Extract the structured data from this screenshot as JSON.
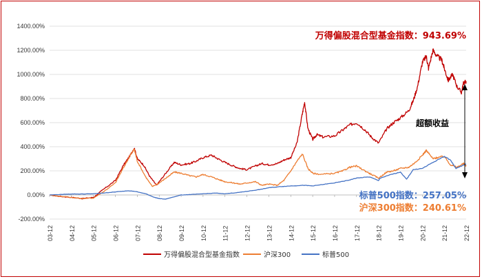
{
  "chart_data": {
    "type": "line",
    "title": "",
    "xlabel": "",
    "ylabel": "",
    "ylim": [
      -200,
      1400
    ],
    "yticks": [
      -200,
      0,
      200,
      400,
      600,
      800,
      1000,
      1200,
      1400
    ],
    "ytick_labels": [
      "-200.00%",
      "0.00%",
      "200.00%",
      "400.00%",
      "600.00%",
      "800.00%",
      "1000.00%",
      "1200.00%",
      "1400.00%"
    ],
    "x_range": [
      2003.917,
      2022.917
    ],
    "xticks": [
      2003.917,
      2004.917,
      2005.917,
      2006.917,
      2007.917,
      2008.917,
      2009.917,
      2010.917,
      2011.917,
      2012.917,
      2013.917,
      2014.917,
      2015.917,
      2016.917,
      2017.917,
      2018.917,
      2019.917,
      2020.917,
      2021.917,
      2022.917
    ],
    "xtick_labels": [
      "03-12",
      "04-12",
      "05-12",
      "06-12",
      "07-12",
      "08-12",
      "09-12",
      "10-12",
      "11-12",
      "12-12",
      "13-12",
      "14-12",
      "15-12",
      "16-12",
      "17-12",
      "18-12",
      "19-12",
      "20-12",
      "21-12",
      "22-12"
    ],
    "series": [
      {
        "name": "万得偏股混合型基金指数",
        "color": "#c00000",
        "x": [
          2003.92,
          2004.3,
          2004.92,
          2005.4,
          2005.92,
          2006.4,
          2006.92,
          2007.3,
          2007.6,
          2007.78,
          2007.92,
          2008.2,
          2008.5,
          2008.8,
          2008.92,
          2009.3,
          2009.6,
          2009.92,
          2010.3,
          2010.6,
          2010.92,
          2011.3,
          2011.6,
          2011.92,
          2012.3,
          2012.6,
          2012.92,
          2013.3,
          2013.6,
          2013.92,
          2014.3,
          2014.6,
          2014.92,
          2015.2,
          2015.42,
          2015.55,
          2015.7,
          2015.92,
          2016.1,
          2016.4,
          2016.92,
          2017.3,
          2017.6,
          2017.92,
          2018.3,
          2018.6,
          2018.92,
          2019.3,
          2019.6,
          2019.92,
          2020.3,
          2020.5,
          2020.7,
          2020.92,
          2021.1,
          2021.2,
          2021.4,
          2021.6,
          2021.8,
          2021.92,
          2022.1,
          2022.3,
          2022.5,
          2022.7,
          2022.8,
          2022.917
        ],
        "y": [
          0,
          -10,
          -20,
          -30,
          -20,
          50,
          120,
          250,
          330,
          390,
          300,
          250,
          150,
          80,
          110,
          200,
          270,
          250,
          260,
          280,
          310,
          330,
          300,
          270,
          240,
          220,
          210,
          240,
          260,
          250,
          260,
          290,
          310,
          430,
          650,
          770,
          550,
          460,
          500,
          480,
          490,
          540,
          580,
          600,
          540,
          480,
          430,
          550,
          600,
          640,
          700,
          780,
          900,
          1100,
          1150,
          1050,
          1200,
          1150,
          1120,
          1050,
          950,
          1000,
          900,
          850,
          930,
          943.69
        ]
      },
      {
        "name": "沪深300",
        "color": "#ed7d31",
        "x": [
          2003.92,
          2004.3,
          2004.92,
          2005.4,
          2005.92,
          2006.4,
          2006.92,
          2007.3,
          2007.6,
          2007.78,
          2007.92,
          2008.3,
          2008.6,
          2008.92,
          2009.3,
          2009.6,
          2009.92,
          2010.3,
          2010.6,
          2010.92,
          2011.3,
          2011.6,
          2011.92,
          2012.3,
          2012.6,
          2012.92,
          2013.3,
          2013.6,
          2013.92,
          2014.3,
          2014.6,
          2014.92,
          2015.2,
          2015.45,
          2015.7,
          2015.92,
          2016.3,
          2016.92,
          2017.3,
          2017.6,
          2017.92,
          2018.3,
          2018.6,
          2018.92,
          2019.3,
          2019.6,
          2019.92,
          2020.3,
          2020.6,
          2020.92,
          2021.1,
          2021.4,
          2021.6,
          2021.92,
          2022.2,
          2022.5,
          2022.8,
          2022.917
        ],
        "y": [
          0,
          -10,
          -20,
          -30,
          -25,
          30,
          100,
          230,
          330,
          380,
          280,
          150,
          70,
          100,
          150,
          190,
          180,
          160,
          150,
          170,
          150,
          130,
          110,
          100,
          90,
          100,
          110,
          80,
          90,
          80,
          120,
          200,
          280,
          340,
          220,
          180,
          170,
          180,
          200,
          230,
          240,
          200,
          170,
          140,
          190,
          200,
          220,
          230,
          270,
          330,
          370,
          300,
          310,
          320,
          250,
          230,
          260,
          240.61
        ]
      },
      {
        "name": "标普500",
        "color": "#4472c4",
        "x": [
          2003.92,
          2004.5,
          2004.92,
          2005.5,
          2005.92,
          2006.5,
          2006.92,
          2007.5,
          2007.8,
          2008.3,
          2008.7,
          2008.92,
          2009.2,
          2009.6,
          2009.92,
          2010.5,
          2010.92,
          2011.5,
          2011.92,
          2012.5,
          2012.92,
          2013.5,
          2013.92,
          2014.5,
          2014.92,
          2015.5,
          2015.92,
          2016.5,
          2016.92,
          2017.5,
          2017.92,
          2018.5,
          2018.92,
          2019.0,
          2019.5,
          2019.92,
          2020.2,
          2020.5,
          2020.92,
          2021.3,
          2021.92,
          2022.2,
          2022.45,
          2022.7,
          2022.917
        ],
        "y": [
          0,
          5,
          8,
          8,
          10,
          18,
          25,
          35,
          30,
          10,
          -20,
          -30,
          -35,
          -15,
          0,
          5,
          10,
          15,
          10,
          20,
          30,
          45,
          60,
          70,
          75,
          80,
          75,
          90,
          100,
          120,
          140,
          150,
          120,
          140,
          170,
          190,
          130,
          210,
          220,
          260,
          320,
          290,
          220,
          240,
          257.05
        ]
      }
    ],
    "legend": {
      "position": "bottom",
      "items": [
        "万得偏股混合型基金指数",
        "沪深300",
        "标普500"
      ]
    },
    "annotations": {
      "red_label": "万得偏股混合型基金指数：943.69%",
      "blue_label": "标普500指数：257.05%",
      "orange_label": "沪深300指数：240.61%",
      "excess_label": "超额收益"
    }
  }
}
